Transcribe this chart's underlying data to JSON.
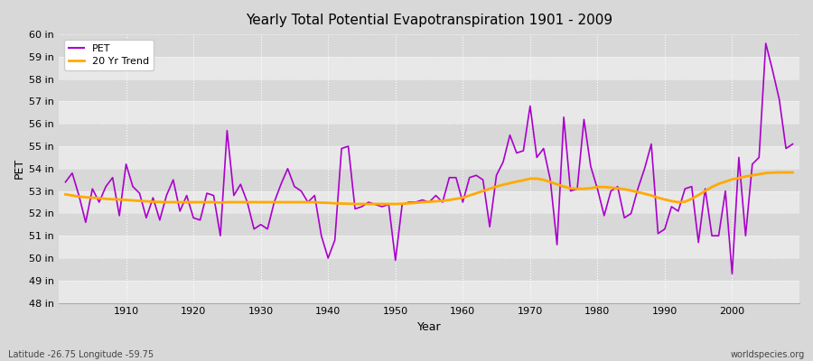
{
  "title": "Yearly Total Potential Evapotranspiration 1901 - 2009",
  "xlabel": "Year",
  "ylabel": "PET",
  "subtitle_left": "Latitude -26.75 Longitude -59.75",
  "subtitle_right": "worldspecies.org",
  "ylim": [
    48,
    60
  ],
  "ytick_labels": [
    "48 in",
    "49 in",
    "50 in",
    "51 in",
    "52 in",
    "53 in",
    "54 in",
    "55 in",
    "56 in",
    "57 in",
    "58 in",
    "59 in",
    "60 in"
  ],
  "ytick_values": [
    48,
    49,
    50,
    51,
    52,
    53,
    54,
    55,
    56,
    57,
    58,
    59,
    60
  ],
  "pet_color": "#aa00cc",
  "trend_color": "#ffaa00",
  "background_color": "#e0e0e0",
  "band_light": "#e8e8e8",
  "band_dark": "#d8d8d8",
  "grid_color": "#ffffff",
  "xtick_values": [
    1910,
    1920,
    1930,
    1940,
    1950,
    1960,
    1970,
    1980,
    1990,
    2000
  ],
  "pet_years": [
    1901,
    1902,
    1903,
    1904,
    1905,
    1906,
    1907,
    1908,
    1909,
    1910,
    1911,
    1912,
    1913,
    1914,
    1915,
    1916,
    1917,
    1918,
    1919,
    1920,
    1921,
    1922,
    1923,
    1924,
    1925,
    1926,
    1927,
    1928,
    1929,
    1930,
    1931,
    1932,
    1933,
    1934,
    1935,
    1936,
    1937,
    1938,
    1939,
    1940,
    1941,
    1942,
    1943,
    1944,
    1945,
    1946,
    1947,
    1948,
    1949,
    1950,
    1951,
    1952,
    1953,
    1954,
    1955,
    1956,
    1957,
    1958,
    1959,
    1960,
    1961,
    1962,
    1963,
    1964,
    1965,
    1966,
    1967,
    1968,
    1969,
    1970,
    1971,
    1972,
    1973,
    1974,
    1975,
    1976,
    1977,
    1978,
    1979,
    1980,
    1981,
    1982,
    1983,
    1984,
    1985,
    1986,
    1987,
    1988,
    1989,
    1990,
    1991,
    1992,
    1993,
    1994,
    1995,
    1996,
    1997,
    1998,
    1999,
    2000,
    2001,
    2002,
    2003,
    2004,
    2005,
    2006,
    2007,
    2008,
    2009
  ],
  "pet_values": [
    53.4,
    53.8,
    52.8,
    51.6,
    53.1,
    52.5,
    53.2,
    53.6,
    51.9,
    54.2,
    53.2,
    52.9,
    51.8,
    52.7,
    51.7,
    52.8,
    53.5,
    52.1,
    52.8,
    51.8,
    51.7,
    52.9,
    52.8,
    51.0,
    55.7,
    52.8,
    53.3,
    52.5,
    51.3,
    51.5,
    51.3,
    52.5,
    53.3,
    54.0,
    53.2,
    53.0,
    52.5,
    52.8,
    51.0,
    50.0,
    50.8,
    54.9,
    55.0,
    52.2,
    52.3,
    52.5,
    52.4,
    52.3,
    52.4,
    49.9,
    52.4,
    52.5,
    52.5,
    52.6,
    52.5,
    52.8,
    52.5,
    53.6,
    53.6,
    52.5,
    53.6,
    53.7,
    53.5,
    51.4,
    53.7,
    54.3,
    55.5,
    54.7,
    54.8,
    56.8,
    54.5,
    54.9,
    53.5,
    50.6,
    56.3,
    53.0,
    53.1,
    56.2,
    54.1,
    53.1,
    51.9,
    53.0,
    53.2,
    51.8,
    52.0,
    53.1,
    54.0,
    55.1,
    51.1,
    51.3,
    52.3,
    52.1,
    53.1,
    53.2,
    50.7,
    53.1,
    51.0,
    51.0,
    53.0,
    49.3,
    54.5,
    51.0,
    54.2,
    54.5,
    59.6,
    58.4,
    57.1,
    54.9,
    55.1
  ],
  "trend_years": [
    1901,
    1902,
    1903,
    1904,
    1905,
    1906,
    1907,
    1908,
    1909,
    1910,
    1911,
    1912,
    1913,
    1914,
    1915,
    1916,
    1917,
    1918,
    1919,
    1920,
    1921,
    1922,
    1923,
    1924,
    1925,
    1926,
    1927,
    1928,
    1929,
    1930,
    1931,
    1932,
    1933,
    1934,
    1935,
    1936,
    1937,
    1938,
    1939,
    1940,
    1941,
    1942,
    1943,
    1944,
    1945,
    1946,
    1947,
    1948,
    1949,
    1950,
    1951,
    1952,
    1953,
    1954,
    1955,
    1956,
    1957,
    1958,
    1959,
    1960,
    1961,
    1962,
    1963,
    1964,
    1965,
    1966,
    1967,
    1968,
    1969,
    1970,
    1971,
    1972,
    1973,
    1974,
    1975,
    1976,
    1977,
    1978,
    1979,
    1980,
    1981,
    1982,
    1983,
    1984,
    1985,
    1986,
    1987,
    1988,
    1989,
    1990,
    1991,
    1992,
    1993,
    1994,
    1995,
    1996,
    1997,
    1998,
    1999,
    2000,
    2001,
    2002,
    2003,
    2004,
    2005,
    2006,
    2007,
    2008,
    2009
  ],
  "trend_values": [
    52.85,
    52.8,
    52.75,
    52.72,
    52.7,
    52.68,
    52.65,
    52.63,
    52.62,
    52.6,
    52.58,
    52.56,
    52.54,
    52.52,
    52.51,
    52.5,
    52.5,
    52.5,
    52.5,
    52.5,
    52.5,
    52.5,
    52.5,
    52.48,
    52.5,
    52.5,
    52.5,
    52.5,
    52.5,
    52.5,
    52.5,
    52.5,
    52.5,
    52.5,
    52.5,
    52.5,
    52.5,
    52.5,
    52.48,
    52.47,
    52.45,
    52.44,
    52.43,
    52.42,
    52.42,
    52.42,
    52.42,
    52.42,
    52.42,
    52.42,
    52.43,
    52.45,
    52.47,
    52.5,
    52.52,
    52.54,
    52.56,
    52.6,
    52.65,
    52.7,
    52.8,
    52.9,
    53.0,
    53.1,
    53.2,
    53.28,
    53.35,
    53.42,
    53.48,
    53.55,
    53.55,
    53.5,
    53.4,
    53.3,
    53.2,
    53.12,
    53.1,
    53.1,
    53.12,
    53.18,
    53.18,
    53.15,
    53.12,
    53.08,
    53.02,
    52.95,
    52.88,
    52.8,
    52.7,
    52.62,
    52.55,
    52.5,
    52.52,
    52.65,
    52.82,
    53.0,
    53.18,
    53.32,
    53.42,
    53.52,
    53.58,
    53.65,
    53.7,
    53.75,
    53.8,
    53.82,
    53.83,
    53.83,
    53.83
  ]
}
